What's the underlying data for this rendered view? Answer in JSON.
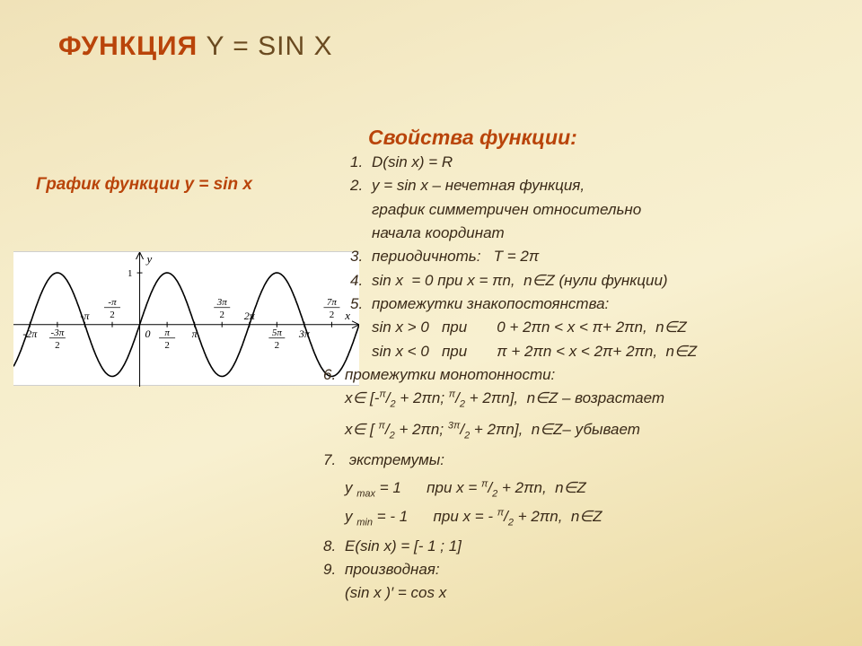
{
  "title_accent": "ФУНКЦИЯ",
  "title_rest": "   Y = SIN X",
  "section_heading": "Свойства функции:",
  "graph_heading": "График функции    y = sin x",
  "graph": {
    "type": "line",
    "function": "sin",
    "x_range_pi": [
      -2.3,
      4.0
    ],
    "y_range": [
      -1.2,
      1.4
    ],
    "axis_color": "#000000",
    "curve_color": "#000000",
    "curve_width": 1.6,
    "background": "#ffffff",
    "tick_font_size": 11,
    "x_ticks": [
      {
        "val": -2,
        "label_top": "",
        "label_bot": "-2π"
      },
      {
        "val": -1.5,
        "label_top": "-3π",
        "label_bot": "2",
        "fraction": true
      },
      {
        "val": -1,
        "label_top": "",
        "label_bot": "-π"
      },
      {
        "val": -0.5,
        "label_top": "-π",
        "label_bot": "2",
        "fraction": true
      },
      {
        "val": 0,
        "label_top": "",
        "label_bot": "0"
      },
      {
        "val": 0.5,
        "label_top": "π",
        "label_bot": "2",
        "fraction": true
      },
      {
        "val": 1,
        "label_top": "",
        "label_bot": "π"
      },
      {
        "val": 1.5,
        "label_top": "3π",
        "label_bot": "2",
        "fraction": true
      },
      {
        "val": 2,
        "label_top": "",
        "label_bot": "2π"
      },
      {
        "val": 2.5,
        "label_top": "5π",
        "label_bot": "2",
        "fraction": true
      },
      {
        "val": 3,
        "label_top": "",
        "label_bot": "3π"
      },
      {
        "val": 3.5,
        "label_top": "7π",
        "label_bot": "2",
        "fraction": true
      }
    ],
    "y_label_pos": "top",
    "y_label": "y",
    "x_label": "x",
    "y_tick_1": "1"
  },
  "lines": {
    "l1": "D(sin x) = R",
    "l2a": "y = sin x – нечетная функция,",
    "l2b": "график симметричен относительно",
    "l2c": "начала координат",
    "l3": "периодичноть:   T = 2π",
    "l4": "sin x  = 0 при x = πn,  n∈Z (нули функции)",
    "l5a": "промежутки знакопостоянства:",
    "l5b": "sin x > 0   при       0 + 2πn < x < π+ 2πn,  n∈Z",
    "l5c": "sin x < 0   при       π + 2πn < x < 2π+ 2πn,  n∈Z",
    "l6a": "промежутки монотонности:",
    "l7a": " экстремумы:",
    "l8": "E(sin x) = [- 1 ; 1]",
    "l9a": "производная:",
    "l9b": "(sin x )′ = cos x"
  },
  "nums": {
    "n1": "1.",
    "n2": "2.",
    "n3": "3.",
    "n4": "4.",
    "n5": "5.",
    "n6": "6.",
    "n7": "7.",
    "n8": "8.",
    "n9": "9."
  },
  "frag": {
    "mono_inc_a": "x∈ [-",
    "pi": "π",
    "slash": "/",
    "two": "2",
    "three_pi": "3π",
    "mono_inc_b": " + 2πn; ",
    "mono_inc_c": " + 2πn],  n∈Z – возрастает",
    "mono_dec_a": "x∈ [ ",
    "mono_dec_c": " + 2πn],  n∈Z– убывает",
    "ymax_a": "y ",
    "max": "max",
    "ymax_b": " = 1      при x = ",
    "ymax_c": " + 2πn,  n∈Z",
    "ymin_a": "y ",
    "min": "min",
    "ymin_b": " = - 1      при x = - ",
    "ymin_c": " + 2πn,  n∈Z"
  }
}
